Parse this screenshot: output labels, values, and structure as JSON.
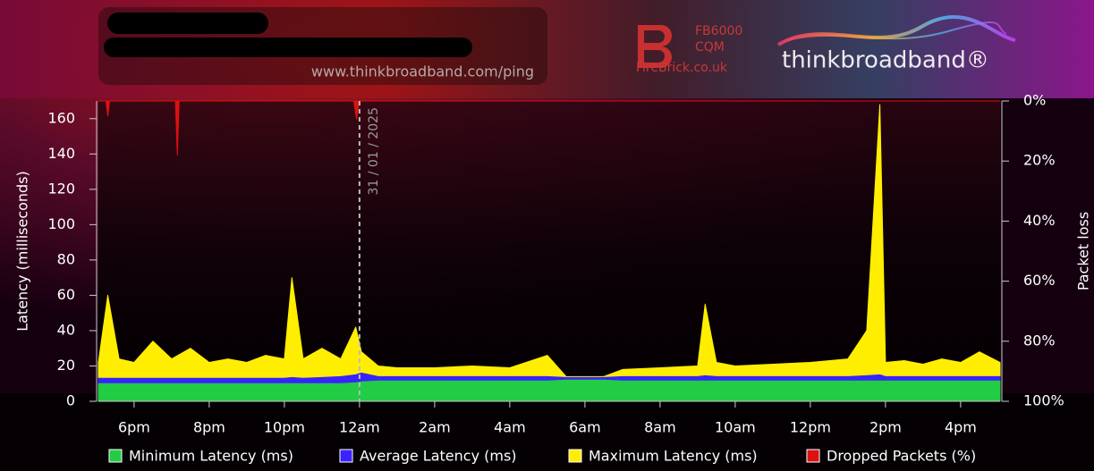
{
  "header": {
    "url": "www.thinkbroadband.com/ping",
    "sponsor_model": "FB6000",
    "sponsor_product": "CQM",
    "sponsor_site": "FireBrick.co.uk",
    "logo": "thinkbroadband®"
  },
  "chart_data": {
    "type": "area",
    "y_label": "Latency (milliseconds)",
    "y2_label": "Packet loss",
    "x": [
      17.05,
      17.3,
      17.6,
      18,
      18.5,
      19,
      19.5,
      20,
      20.5,
      21,
      21.5,
      22,
      22.2,
      22.5,
      23,
      23.5,
      23.9,
      24.05,
      24.5,
      25,
      26,
      27,
      28,
      29,
      29.5,
      30,
      30.5,
      31,
      32,
      33,
      33.2,
      33.5,
      34,
      35,
      36,
      37,
      37.5,
      37.85,
      38,
      38.5,
      39,
      39.5,
      40,
      40.5,
      41.05
    ],
    "xlim": [
      17.05,
      41.05
    ],
    "xticks": [
      {
        "value": 18,
        "label": "6pm"
      },
      {
        "value": 20,
        "label": "8pm"
      },
      {
        "value": 22,
        "label": "10pm"
      },
      {
        "value": 24,
        "label": "12am"
      },
      {
        "value": 26,
        "label": "2am"
      },
      {
        "value": 28,
        "label": "4am"
      },
      {
        "value": 30,
        "label": "6am"
      },
      {
        "value": 32,
        "label": "8am"
      },
      {
        "value": 34,
        "label": "10am"
      },
      {
        "value": 36,
        "label": "12pm"
      },
      {
        "value": 38,
        "label": "2pm"
      },
      {
        "value": 40,
        "label": "4pm"
      }
    ],
    "ylim": [
      0,
      170
    ],
    "yticks": [
      0,
      20,
      40,
      60,
      80,
      100,
      120,
      140,
      160
    ],
    "y2lim": [
      100,
      0
    ],
    "y2ticks": [
      {
        "value": 0,
        "label": "0%"
      },
      {
        "value": 20,
        "label": "20%"
      },
      {
        "value": 40,
        "label": "40%"
      },
      {
        "value": 60,
        "label": "60%"
      },
      {
        "value": 80,
        "label": "80%"
      },
      {
        "value": 100,
        "label": "100%"
      }
    ],
    "annotations": [
      {
        "x": 24,
        "label": "31 / 01 / 2025"
      }
    ],
    "series": [
      {
        "name": "Minimum Latency (ms)",
        "color": "#22cc44",
        "values": [
          10,
          10,
          10,
          10,
          10,
          10,
          10,
          10,
          10,
          10,
          10,
          10,
          10,
          10,
          10,
          10,
          10.5,
          11,
          11.5,
          11.5,
          11.5,
          11.5,
          11.5,
          11.5,
          12,
          12,
          12,
          11.5,
          11.5,
          11.5,
          11.5,
          11.5,
          11.5,
          11.5,
          11.5,
          11.5,
          11.5,
          11.5,
          11.5,
          11.5,
          11.5,
          11.5,
          11.5,
          11.5,
          11.5
        ]
      },
      {
        "name": "Average Latency (ms)",
        "color": "#3a22ff",
        "values": [
          13,
          13,
          13,
          13,
          13,
          13,
          13,
          13,
          13,
          13,
          13,
          13,
          13.5,
          13,
          13.5,
          14,
          15,
          16,
          14,
          14,
          14,
          14,
          14,
          14,
          13.5,
          13.5,
          13.5,
          14,
          14,
          14,
          14.5,
          14,
          14,
          14,
          14,
          14,
          14.5,
          15,
          14,
          14,
          14,
          14,
          14,
          14,
          14
        ]
      },
      {
        "name": "Maximum Latency (ms)",
        "color": "#ffee00",
        "values": [
          22,
          60,
          24,
          22,
          34,
          24,
          30,
          22,
          24,
          22,
          26,
          24,
          70,
          24,
          30,
          24,
          42,
          28,
          20,
          19,
          19,
          20,
          19,
          26,
          14,
          14,
          14,
          18,
          19,
          20,
          55,
          22,
          20,
          21,
          22,
          24,
          40,
          168,
          22,
          23,
          21,
          24,
          22,
          28,
          22
        ]
      },
      {
        "name": "Dropped Packets (%)",
        "color": "#dd1111",
        "axis": "y2",
        "x": [
          17.05,
          17.25,
          17.3,
          17.35,
          19.1,
          19.15,
          19.2,
          23.85,
          23.92,
          24.0,
          41.05
        ],
        "values": [
          0,
          0,
          5,
          0,
          0,
          18,
          0,
          0,
          6,
          0,
          0
        ]
      }
    ]
  }
}
